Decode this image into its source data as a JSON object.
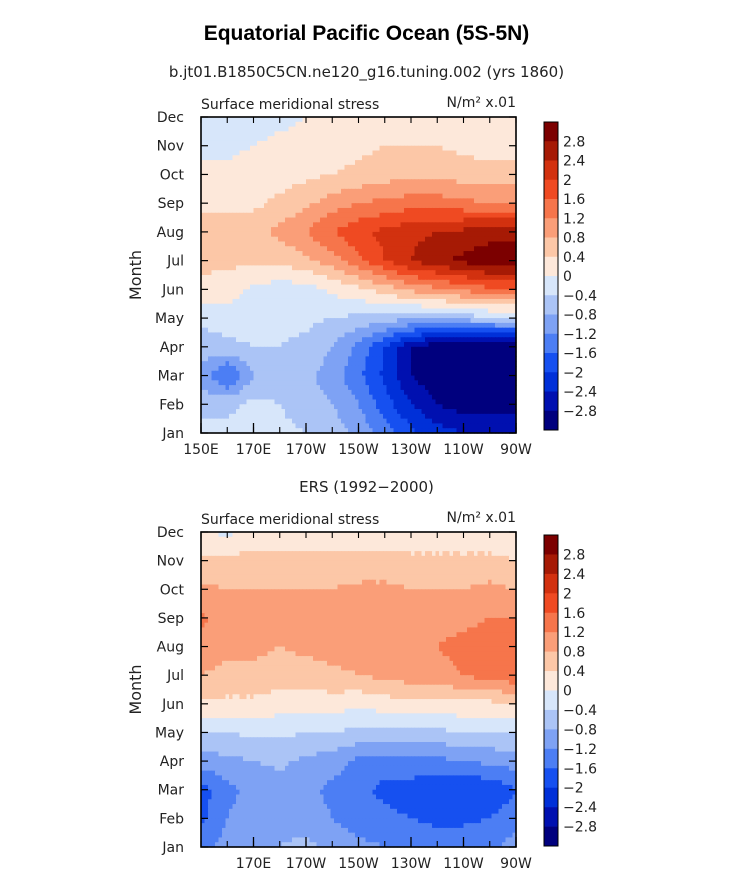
{
  "figure": {
    "title": "Equatorial Pacific Ocean (5S-5N)",
    "subtitle": "b.jt01.B1850C5CN.ne120_g16.tuning.002 (yrs 1860)",
    "second_title": "ERS (1992−2000)"
  },
  "chart_data": [
    {
      "type": "heatmap",
      "panel_id": "model",
      "title": "b.jt01.B1850C5CN.ne120_g16.tuning.002 (yrs 1860)",
      "left_label": "Surface meridional stress",
      "units_label": "N/m² x.01",
      "ylabel": "Month",
      "xlabel": "",
      "y_ticks": [
        "Jan",
        "Feb",
        "Mar",
        "Apr",
        "May",
        "Jun",
        "Jul",
        "Aug",
        "Sep",
        "Oct",
        "Nov",
        "Dec"
      ],
      "x_ticks": [
        "150E",
        "170E",
        "170W",
        "150W",
        "130W",
        "110W",
        "90W"
      ],
      "x_range_deg_east": [
        150,
        270
      ],
      "x_step_deg": 10,
      "grid_values": [
        [
          -0.2,
          -0.3,
          -0.2,
          -0.3,
          -0.4,
          -0.6,
          -0.9,
          -1.4,
          -1.9,
          -2.2,
          -2.4,
          -2.5,
          -2.5
        ],
        [
          -0.6,
          -0.5,
          -0.3,
          -0.4,
          -0.6,
          -0.8,
          -1.2,
          -1.8,
          -2.4,
          -2.8,
          -3.0,
          -3.0,
          -3.0
        ],
        [
          -0.9,
          -1.7,
          -0.8,
          -0.6,
          -0.7,
          -1.0,
          -1.5,
          -2.1,
          -2.8,
          -3.1,
          -3.3,
          -3.4,
          -3.3
        ],
        [
          -0.6,
          -0.5,
          -0.4,
          -0.4,
          -0.5,
          -0.8,
          -1.3,
          -2.0,
          -2.8,
          -3.1,
          -3.3,
          -3.4,
          -3.3
        ],
        [
          -0.3,
          -0.2,
          -0.2,
          -0.3,
          -0.3,
          -0.4,
          -0.5,
          -0.6,
          -0.7,
          -0.7,
          -0.6,
          -0.5,
          -0.4
        ],
        [
          0.3,
          0.2,
          -0.1,
          -0.2,
          -0.2,
          0.1,
          0.3,
          0.6,
          0.9,
          1.1,
          1.3,
          1.5,
          1.5
        ],
        [
          0.5,
          0.5,
          0.5,
          0.5,
          0.7,
          1.0,
          1.5,
          2.0,
          2.4,
          2.7,
          2.9,
          3.1,
          3.1
        ],
        [
          0.6,
          0.6,
          0.7,
          0.9,
          1.2,
          1.6,
          1.9,
          2.1,
          2.3,
          2.4,
          2.5,
          2.6,
          2.6
        ],
        [
          0.3,
          0.3,
          0.3,
          0.5,
          0.7,
          1.0,
          1.2,
          1.3,
          1.4,
          1.4,
          1.3,
          1.2,
          1.2
        ],
        [
          0.1,
          0.1,
          0.2,
          0.2,
          0.3,
          0.4,
          0.5,
          0.6,
          0.7,
          0.7,
          0.6,
          0.6,
          0.6
        ],
        [
          -0.1,
          -0.1,
          0.0,
          0.1,
          0.1,
          0.2,
          0.3,
          0.4,
          0.4,
          0.4,
          0.3,
          0.2,
          0.2
        ],
        [
          -0.3,
          -0.3,
          -0.2,
          -0.1,
          0.0,
          0.1,
          0.2,
          0.3,
          0.3,
          0.3,
          0.2,
          0.1,
          0.1
        ]
      ],
      "colorbar_levels": [
        -2.8,
        -2.4,
        -2.0,
        -1.6,
        -1.2,
        -0.8,
        -0.4,
        0,
        0.4,
        0.8,
        1.2,
        1.6,
        2.0,
        2.4,
        2.8
      ],
      "colorbar_labels": [
        "2.8",
        "2.4",
        "2",
        "1.6",
        "1.2",
        "0.8",
        "0.4",
        "0",
        "−0.4",
        "−0.8",
        "−1.2",
        "−1.6",
        "−2",
        "−2.4",
        "−2.8"
      ]
    },
    {
      "type": "heatmap",
      "panel_id": "obs",
      "title": "ERS (1992−2000)",
      "left_label": "Surface meridional stress",
      "units_label": "N/m² x.01",
      "ylabel": "Month",
      "xlabel": "",
      "y_ticks": [
        "Jan",
        "Feb",
        "Mar",
        "Apr",
        "May",
        "Jun",
        "Jul",
        "Aug",
        "Sep",
        "Oct",
        "Nov",
        "Dec"
      ],
      "x_ticks": [
        "170E",
        "170W",
        "150W",
        "130W",
        "110W",
        "90W"
      ],
      "x_range_deg_east": [
        150,
        270
      ],
      "x_step_deg": 10,
      "grid_values": [
        [
          -1.4,
          -1.0,
          -0.9,
          -0.8,
          -0.7,
          -0.9,
          -1.1,
          -1.2,
          -1.3,
          -1.4,
          -1.3,
          -1.3,
          -1.0
        ],
        [
          -1.7,
          -1.2,
          -1.0,
          -0.9,
          -1.0,
          -1.2,
          -1.4,
          -1.5,
          -1.6,
          -1.7,
          -1.7,
          -1.6,
          -1.4
        ],
        [
          -1.8,
          -1.3,
          -1.1,
          -1.0,
          -1.1,
          -1.3,
          -1.5,
          -1.7,
          -1.8,
          -1.9,
          -2.0,
          -1.9,
          -1.6
        ],
        [
          -1.0,
          -0.9,
          -0.8,
          -0.7,
          -0.9,
          -1.0,
          -1.3,
          -1.4,
          -1.3,
          -1.3,
          -1.2,
          -1.1,
          -1.0
        ],
        [
          -0.4,
          -0.4,
          -0.3,
          -0.3,
          -0.4,
          -0.4,
          -0.5,
          -0.5,
          -0.5,
          -0.5,
          -0.4,
          -0.4,
          -0.4
        ],
        [
          0.3,
          0.3,
          0.3,
          0.2,
          0.2,
          0.2,
          0.1,
          0.2,
          0.3,
          0.3,
          0.3,
          0.3,
          0.4
        ],
        [
          0.8,
          0.7,
          0.7,
          0.6,
          0.6,
          0.7,
          0.8,
          0.9,
          1.0,
          1.1,
          1.2,
          1.4,
          1.5
        ],
        [
          1.0,
          0.9,
          0.9,
          0.8,
          0.9,
          1.0,
          1.0,
          1.1,
          1.1,
          1.2,
          1.3,
          1.4,
          1.4
        ],
        [
          1.3,
          0.9,
          0.9,
          0.8,
          0.9,
          1.0,
          1.0,
          1.0,
          1.1,
          1.1,
          1.1,
          1.2,
          1.2
        ],
        [
          0.9,
          0.8,
          0.8,
          0.8,
          0.8,
          0.8,
          0.9,
          0.9,
          0.8,
          0.8,
          0.8,
          0.9,
          0.8
        ],
        [
          0.5,
          0.5,
          0.6,
          0.6,
          0.6,
          0.6,
          0.5,
          0.5,
          0.5,
          0.5,
          0.5,
          0.5,
          0.4
        ],
        [
          0.1,
          -0.1,
          0.1,
          0.1,
          0.1,
          0.1,
          0.1,
          0.2,
          0.1,
          0.1,
          0.1,
          0.1,
          0.0
        ]
      ],
      "colorbar_levels": [
        -2.8,
        -2.4,
        -2.0,
        -1.6,
        -1.2,
        -0.8,
        -0.4,
        0,
        0.4,
        0.8,
        1.2,
        1.6,
        2.0,
        2.4,
        2.8
      ],
      "colorbar_labels": [
        "2.8",
        "2.4",
        "2",
        "1.6",
        "1.2",
        "0.8",
        "0.4",
        "0",
        "−0.4",
        "−0.8",
        "−1.2",
        "−1.6",
        "−2",
        "−2.4",
        "−2.8"
      ]
    }
  ],
  "colors": {
    "palette": [
      "#00007e",
      "#0010b0",
      "#0030d8",
      "#1650f0",
      "#4c7ef4",
      "#7ea2f4",
      "#abc4f6",
      "#d7e6fa",
      "#fde8da",
      "#fcc7a7",
      "#fa9e78",
      "#f6754b",
      "#ef4a22",
      "#d2310f",
      "#a61a05",
      "#7c0000"
    ]
  }
}
